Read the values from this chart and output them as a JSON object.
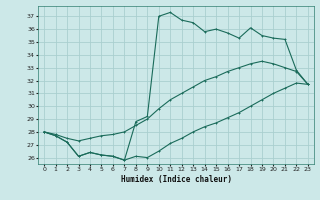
{
  "xlabel": "Humidex (Indice chaleur)",
  "bg_color": "#cce8e8",
  "grid_color": "#b0d8d8",
  "line_color": "#1a6b5a",
  "xlim": [
    -0.5,
    23.5
  ],
  "ylim": [
    25.5,
    37.8
  ],
  "xtick_labels": [
    "0",
    "1",
    "2",
    "3",
    "4",
    "5",
    "6",
    "7",
    "8",
    "9",
    "10",
    "11",
    "12",
    "13",
    "14",
    "15",
    "16",
    "17",
    "18",
    "19",
    "20",
    "21",
    "22",
    "23"
  ],
  "ytick_labels": [
    "26",
    "27",
    "28",
    "29",
    "30",
    "31",
    "32",
    "33",
    "34",
    "35",
    "36",
    "37"
  ],
  "ytick_vals": [
    26,
    27,
    28,
    29,
    30,
    31,
    32,
    33,
    34,
    35,
    36,
    37
  ],
  "series_min_x": [
    0,
    1,
    2,
    3,
    4,
    5,
    6,
    7,
    8,
    9,
    10,
    11,
    12,
    13,
    14,
    15,
    16,
    17,
    18,
    19,
    20,
    21,
    22,
    23
  ],
  "series_min_y": [
    28.0,
    27.7,
    27.2,
    26.1,
    26.4,
    26.2,
    26.1,
    25.8,
    26.1,
    26.0,
    26.5,
    27.1,
    27.5,
    28.0,
    28.4,
    28.7,
    29.1,
    29.5,
    30.0,
    30.5,
    31.0,
    31.4,
    31.8,
    31.7
  ],
  "series_mid_x": [
    0,
    1,
    2,
    3,
    4,
    5,
    6,
    7,
    8,
    9,
    10,
    11,
    12,
    13,
    14,
    15,
    16,
    17,
    18,
    19,
    20,
    21,
    22,
    23
  ],
  "series_mid_y": [
    28.0,
    27.8,
    27.5,
    27.3,
    27.5,
    27.7,
    27.8,
    28.0,
    28.5,
    29.0,
    29.8,
    30.5,
    31.0,
    31.5,
    32.0,
    32.3,
    32.7,
    33.0,
    33.3,
    33.5,
    33.3,
    33.0,
    32.7,
    31.7
  ],
  "series_max_x": [
    0,
    1,
    2,
    3,
    4,
    5,
    6,
    7,
    8,
    9,
    10,
    11,
    12,
    13,
    14,
    15,
    16,
    17,
    18,
    19,
    20,
    21,
    22,
    23
  ],
  "series_max_y": [
    28.0,
    27.7,
    27.2,
    26.1,
    26.4,
    26.2,
    26.1,
    25.8,
    28.8,
    29.2,
    37.0,
    37.3,
    36.7,
    36.5,
    35.8,
    36.0,
    35.7,
    35.3,
    36.1,
    35.5,
    35.3,
    35.2,
    32.8,
    31.7
  ]
}
